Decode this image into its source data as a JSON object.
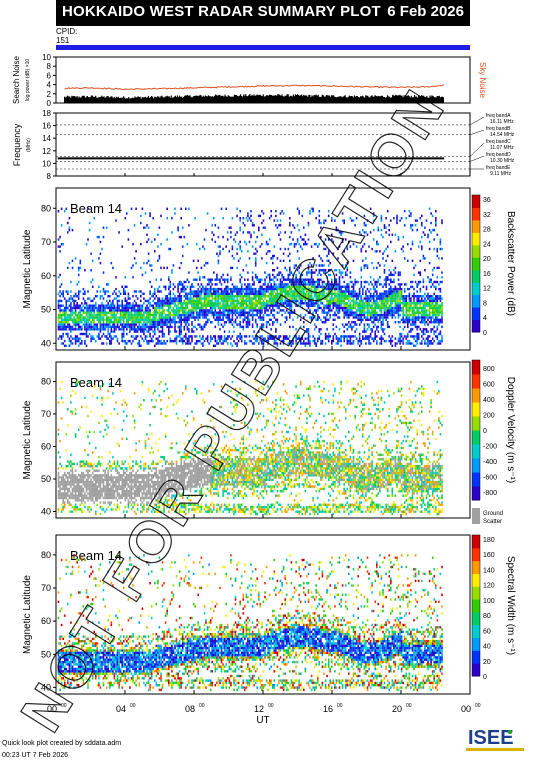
{
  "header": {
    "title": "HOKKAIDO WEST RADAR SUMMARY PLOT",
    "date": "6 Feb 2026",
    "cpid_label": "CPID:",
    "cpid_value": "151"
  },
  "colors": {
    "banner": "#000000",
    "cpid_bar": "#1e1ee6",
    "sky_noise": "#e05020",
    "search_noise": "#000000",
    "ground_scatter": "#a0a0a0",
    "watermark": "#000000"
  },
  "watermark": "NOT FOR PUBLICATION",
  "footer": {
    "credit": "Quick look plot created by sddata.adm",
    "timestamp": "00:23 UT  7 Feb 2026",
    "logo_text": "ISEE"
  },
  "chart_data": [
    {
      "type": "line",
      "panel": "noise",
      "ylabel": "Search Noise",
      "ylabel_sub": "log power (dB) ×10",
      "right_label": "Sky Noise",
      "ylim": [
        0,
        10
      ],
      "yticks": [
        0,
        2,
        4,
        6,
        8,
        10
      ],
      "x_range_hours": [
        0,
        24
      ],
      "series": [
        {
          "name": "Sky Noise",
          "x": [
            0.5,
            2,
            4,
            6,
            8,
            10,
            12,
            14,
            16,
            18,
            20,
            21.5,
            22.5
          ],
          "y": [
            3.2,
            3.3,
            3.0,
            3.1,
            3.3,
            3.5,
            3.7,
            3.8,
            3.7,
            3.5,
            3.4,
            3.5,
            3.9
          ]
        },
        {
          "name": "Search Noise",
          "x": [
            0.5,
            2,
            4,
            6,
            8,
            10,
            12,
            14,
            16,
            18,
            20,
            21.5,
            22.5
          ],
          "y": [
            1.3,
            1.4,
            1.2,
            1.3,
            1.5,
            1.6,
            1.7,
            1.6,
            1.5,
            1.4,
            1.5,
            1.4,
            1.5
          ]
        }
      ]
    },
    {
      "type": "line",
      "panel": "frequency",
      "ylabel": "Frequency",
      "ylabel_sub": "(MHz)",
      "ylim": [
        8,
        18
      ],
      "yticks": [
        8,
        10,
        12,
        14,
        16,
        18
      ],
      "bands": [
        {
          "name": "freq bandA",
          "mhz": "16.11 MHz",
          "value": 16.11
        },
        {
          "name": "freq bandB",
          "mhz": "14.54 MHz",
          "value": 14.54
        },
        {
          "name": "freq bandC",
          "mhz": "11.07 MHz",
          "value": 11.07
        },
        {
          "name": "freq bandD",
          "mhz": "10.30 MHz",
          "value": 10.3
        },
        {
          "name": "freq bandE",
          "mhz": "9.11 MHz",
          "value": 9.11
        }
      ],
      "series": [
        {
          "name": "operating frequency",
          "x": [
            0.1,
            22.5
          ],
          "y": [
            10.8,
            10.8
          ]
        }
      ]
    },
    {
      "type": "heatmap",
      "panel": "power",
      "beam_label": "Beam 14",
      "ylabel": "Magnetic Latitude",
      "ylim": [
        38,
        86
      ],
      "yticks": [
        40,
        50,
        60,
        70,
        80
      ],
      "colorbar_label": "Backscatter Power (dB)",
      "colorbar_ticks": [
        "0",
        "4",
        "8",
        "12",
        "16",
        "20",
        "24",
        "28",
        "32",
        "36"
      ],
      "colorbar_range": [
        0,
        36
      ],
      "colorbar_colors": [
        "#2a00c8",
        "#0033ff",
        "#0099ff",
        "#00cccc",
        "#00cc66",
        "#33cc00",
        "#99dd00",
        "#ffee00",
        "#ff9900",
        "#ff3300",
        "#cc0000"
      ]
    },
    {
      "type": "heatmap",
      "panel": "velocity",
      "beam_label": "Beam 14",
      "ylabel": "Magnetic Latitude",
      "ylim": [
        38,
        86
      ],
      "yticks": [
        40,
        50,
        60,
        70,
        80
      ],
      "colorbar_label": "Doppler Velocity (m s⁻¹)",
      "colorbar_ticks": [
        "800",
        "600",
        "400",
        "200",
        "0",
        "-200",
        "-400",
        "-600",
        "-800"
      ],
      "colorbar_range": [
        -800,
        800
      ],
      "colorbar_colors": [
        "#2a00c8",
        "#0033ff",
        "#0099ff",
        "#00cccc",
        "#00cc66",
        "#99dd00",
        "#ffee00",
        "#ff9900",
        "#ff3300",
        "#cc0000"
      ],
      "ground_scatter_label": "Ground Scatter"
    },
    {
      "type": "heatmap",
      "panel": "width",
      "beam_label": "Beam 14",
      "ylabel": "Magnetic Latitude",
      "ylim": [
        38,
        86
      ],
      "yticks": [
        40,
        50,
        60,
        70,
        80
      ],
      "colorbar_label": "Spectral Width (m s⁻¹)",
      "colorbar_ticks": [
        "0",
        "20",
        "40",
        "60",
        "80",
        "100",
        "120",
        "140",
        "160",
        "180"
      ],
      "colorbar_range": [
        0,
        180
      ],
      "colorbar_colors": [
        "#2a00c8",
        "#0033ff",
        "#0099ff",
        "#00cccc",
        "#00cc66",
        "#33cc00",
        "#99dd00",
        "#ffee00",
        "#ff9900",
        "#ff3300",
        "#cc0000"
      ]
    }
  ],
  "xaxis": {
    "label": "UT",
    "range_hours": [
      0,
      24
    ],
    "ticks": [
      {
        "hh": "00",
        "mm": "00"
      },
      {
        "hh": "04",
        "mm": "00"
      },
      {
        "hh": "08",
        "mm": "00"
      },
      {
        "hh": "12",
        "mm": "00"
      },
      {
        "hh": "16",
        "mm": "00"
      },
      {
        "hh": "20",
        "mm": "00"
      },
      {
        "hh": "00",
        "mm": "00"
      }
    ]
  }
}
